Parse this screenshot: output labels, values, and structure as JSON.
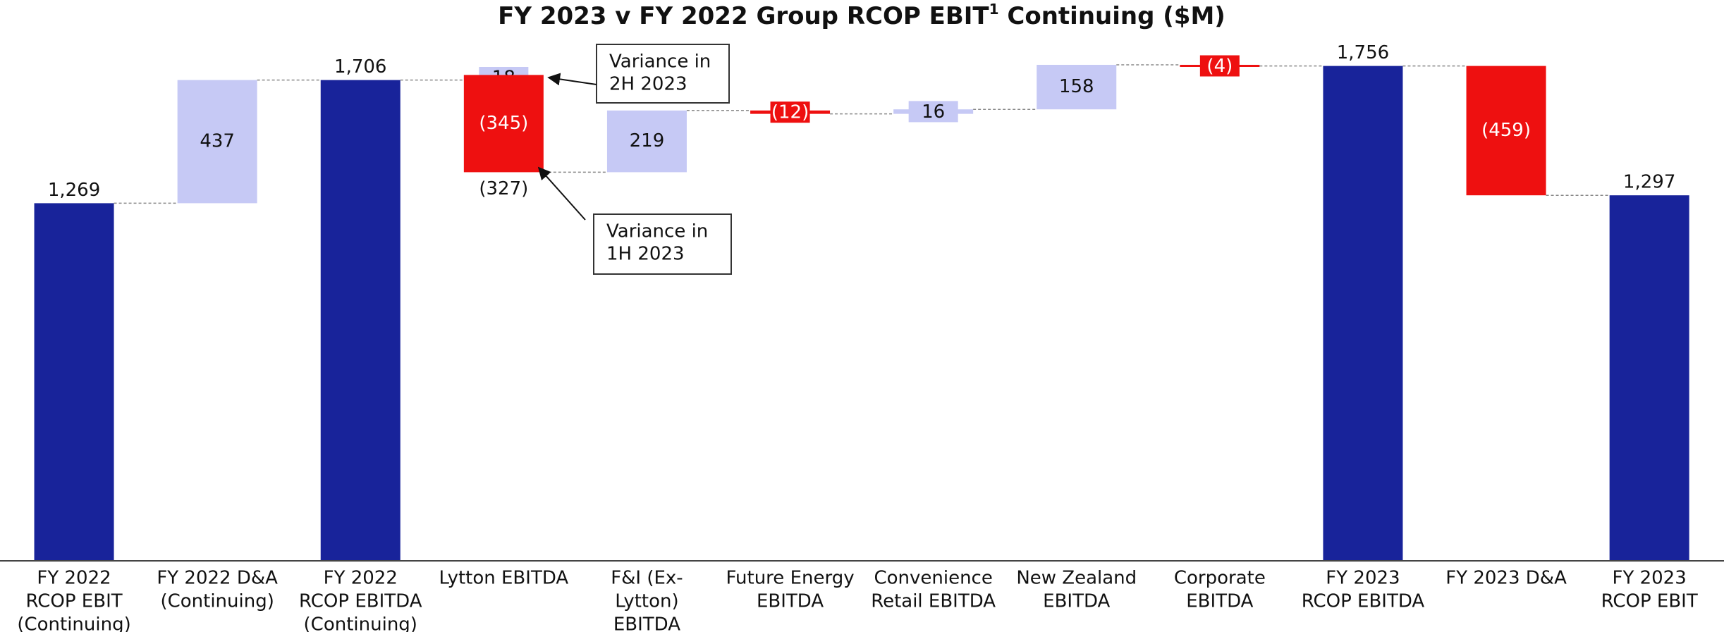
{
  "chart_data": {
    "type": "waterfall",
    "title": [
      "FY 2023 v FY 2022 Group RCOP EBIT",
      "1",
      " Continuing ($M)"
    ],
    "ylim": [
      0,
      1900
    ],
    "colors": {
      "total": "#18239a",
      "increase": "#c6c9f5",
      "decrease": "#ee1010"
    },
    "categories": [
      {
        "label": [
          "FY 2022",
          "RCOP EBIT",
          "(Continuing)"
        ],
        "kind": "total",
        "values": [
          1269
        ],
        "value_labels": [
          "1,269"
        ]
      },
      {
        "label": [
          "FY 2022 D&A",
          "(Continuing)"
        ],
        "kind": "delta",
        "values": [
          437
        ],
        "value_labels": [
          "437"
        ]
      },
      {
        "label": [
          "FY 2022",
          "RCOP EBITDA",
          "(Continuing)"
        ],
        "kind": "total",
        "values": [
          1706
        ],
        "value_labels": [
          "1,706"
        ]
      },
      {
        "label": [
          "Lytton EBITDA"
        ],
        "kind": "delta",
        "values": [
          18,
          -345
        ],
        "value_labels": [
          "18",
          "(345)"
        ],
        "net": -327,
        "net_label": "(327)"
      },
      {
        "label": [
          "F&I (Ex-",
          "Lytton)",
          "EBITDA"
        ],
        "kind": "delta",
        "values": [
          219
        ],
        "value_labels": [
          "219"
        ]
      },
      {
        "label": [
          "Future Energy",
          "EBITDA"
        ],
        "kind": "delta",
        "values": [
          -12
        ],
        "value_labels": [
          "(12)"
        ]
      },
      {
        "label": [
          "Convenience",
          "Retail EBITDA"
        ],
        "kind": "delta",
        "values": [
          16
        ],
        "value_labels": [
          "16"
        ]
      },
      {
        "label": [
          "New Zealand",
          "EBITDA"
        ],
        "kind": "delta",
        "values": [
          158
        ],
        "value_labels": [
          "158"
        ]
      },
      {
        "label": [
          "Corporate",
          "EBITDA"
        ],
        "kind": "delta",
        "values": [
          -4
        ],
        "value_labels": [
          "(4)"
        ]
      },
      {
        "label": [
          "FY 2023",
          "RCOP EBITDA"
        ],
        "kind": "total",
        "values": [
          1756
        ],
        "value_labels": [
          "1,756"
        ]
      },
      {
        "label": [
          "FY 2023 D&A"
        ],
        "kind": "delta",
        "values": [
          -459
        ],
        "value_labels": [
          "(459)"
        ]
      },
      {
        "label": [
          "FY 2023",
          "RCOP EBIT"
        ],
        "kind": "total",
        "values": [
          1297
        ],
        "value_labels": [
          "1,297"
        ]
      }
    ],
    "annotations": [
      {
        "text": [
          "Variance in",
          "2H 2023"
        ]
      },
      {
        "text": [
          "Variance in",
          "1H 2023"
        ]
      }
    ]
  }
}
